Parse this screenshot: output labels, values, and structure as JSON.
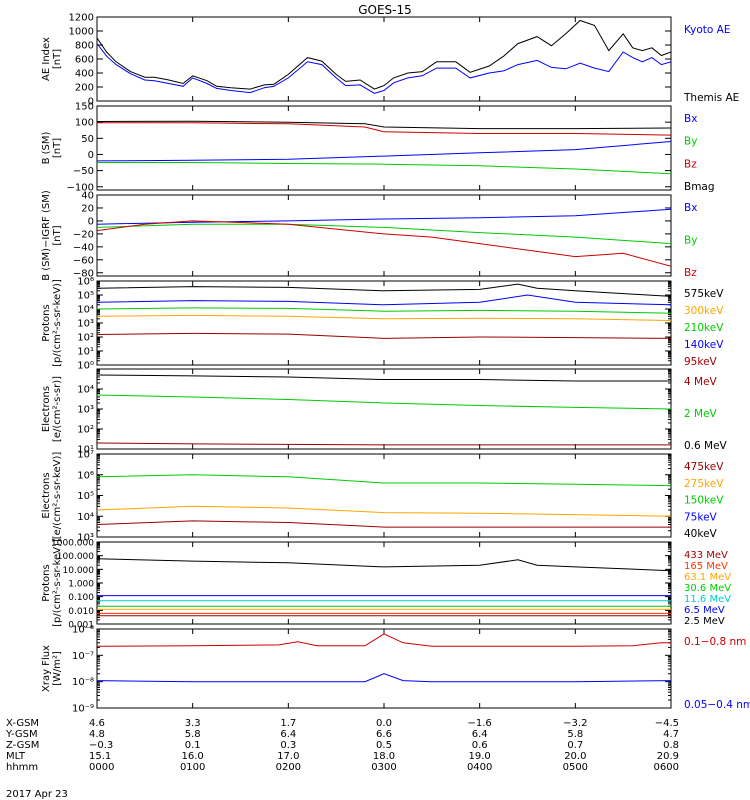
{
  "title": "GOES-15",
  "date_label": "2017 Apr 23",
  "chart_data": [
    {
      "id": "ae",
      "type": "line",
      "ylabel": [
        "AE Index",
        "[nT]"
      ],
      "scale": "linear",
      "ylim": [
        0,
        1200
      ],
      "ticks": [
        0,
        200,
        400,
        600,
        800,
        1000,
        1200
      ],
      "tick_labels": [
        "0",
        "200",
        "400",
        "600",
        "800",
        "1000",
        "1200"
      ],
      "series": [
        {
          "name": "Kyoto AE",
          "color": "#0000ff",
          "x": [
            0,
            0.1,
            0.2,
            0.35,
            0.5,
            0.6,
            0.75,
            0.9,
            1.0,
            1.15,
            1.25,
            1.4,
            1.6,
            1.75,
            1.85,
            2.0,
            2.2,
            2.35,
            2.5,
            2.6,
            2.75,
            2.9,
            3.0,
            3.1,
            3.25,
            3.4,
            3.55,
            3.75,
            3.9,
            4.1,
            4.25,
            4.4,
            4.6,
            4.75,
            4.9,
            5.05,
            5.2,
            5.35,
            5.5,
            5.6,
            5.7,
            5.8,
            5.9,
            6.0
          ],
          "y": [
            820,
            640,
            520,
            390,
            300,
            290,
            250,
            210,
            330,
            250,
            180,
            150,
            120,
            190,
            210,
            330,
            560,
            520,
            330,
            220,
            230,
            110,
            150,
            260,
            330,
            360,
            470,
            470,
            330,
            400,
            430,
            520,
            580,
            480,
            460,
            540,
            470,
            420,
            700,
            620,
            560,
            620,
            520,
            560
          ]
        },
        {
          "name": "Themis AE",
          "color": "#000000",
          "x": [
            0,
            0.1,
            0.2,
            0.35,
            0.5,
            0.6,
            0.75,
            0.9,
            1.0,
            1.15,
            1.25,
            1.4,
            1.6,
            1.75,
            1.85,
            2.0,
            2.2,
            2.35,
            2.5,
            2.6,
            2.75,
            2.9,
            3.0,
            3.1,
            3.25,
            3.4,
            3.55,
            3.75,
            3.9,
            4.1,
            4.25,
            4.4,
            4.6,
            4.75,
            4.9,
            5.05,
            5.2,
            5.35,
            5.5,
            5.6,
            5.7,
            5.8,
            5.9,
            6.0
          ],
          "y": [
            900,
            700,
            560,
            420,
            340,
            340,
            300,
            250,
            360,
            290,
            210,
            190,
            170,
            230,
            240,
            380,
            620,
            570,
            380,
            280,
            300,
            170,
            220,
            330,
            400,
            420,
            560,
            560,
            410,
            500,
            640,
            820,
            920,
            790,
            960,
            1150,
            1080,
            720,
            960,
            760,
            720,
            760,
            650,
            700
          ]
        }
      ]
    },
    {
      "id": "bsm",
      "type": "line",
      "ylabel": [
        "B (SM)",
        "[nT]"
      ],
      "scale": "linear",
      "ylim": [
        -110,
        150
      ],
      "ticks": [
        -100,
        -50,
        0,
        50,
        100,
        150
      ],
      "tick_labels": [
        "−100",
        "−50",
        "0",
        "50",
        "100",
        "150"
      ],
      "series": [
        {
          "name": "Bx",
          "color": "#0000ff",
          "x": [
            0,
            1,
            2,
            3,
            4,
            5,
            6
          ],
          "y": [
            -20,
            -18,
            -15,
            -5,
            5,
            15,
            40
          ]
        },
        {
          "name": "By",
          "color": "#00cc00",
          "x": [
            0,
            1,
            2,
            3,
            4,
            5,
            6
          ],
          "y": [
            -25,
            -25,
            -28,
            -30,
            -35,
            -45,
            -60
          ]
        },
        {
          "name": "Bz",
          "color": "#cc0000",
          "x": [
            0,
            1,
            2,
            2.8,
            3,
            4,
            5,
            6
          ],
          "y": [
            98,
            98,
            95,
            85,
            70,
            65,
            65,
            60
          ]
        },
        {
          "name": "Bmag",
          "color": "#000000",
          "x": [
            0,
            1,
            2,
            2.8,
            3,
            4,
            5,
            6
          ],
          "y": [
            102,
            103,
            100,
            95,
            85,
            80,
            80,
            82
          ]
        }
      ]
    },
    {
      "id": "bigrf",
      "type": "line",
      "ylabel": [
        "B (SM)−IGRF (SM)",
        "[nT]"
      ],
      "scale": "linear",
      "ylim": [
        -85,
        40
      ],
      "ticks": [
        -80,
        -60,
        -40,
        -20,
        0,
        20,
        40
      ],
      "tick_labels": [
        "−80",
        "−60",
        "−40",
        "−20",
        "0",
        "20",
        "40"
      ],
      "series": [
        {
          "name": "Bx",
          "color": "#0000ff",
          "x": [
            0,
            1,
            2,
            3,
            4,
            5,
            6
          ],
          "y": [
            -5,
            -2,
            0,
            3,
            5,
            8,
            18
          ]
        },
        {
          "name": "By",
          "color": "#00cc00",
          "x": [
            0,
            1,
            2,
            3,
            4,
            5,
            6
          ],
          "y": [
            -10,
            -5,
            -5,
            -10,
            -18,
            -25,
            -35
          ]
        },
        {
          "name": "Bz",
          "color": "#cc0000",
          "x": [
            0,
            0.5,
            1,
            2,
            3,
            3.5,
            4,
            4.5,
            5,
            5.5,
            6
          ],
          "y": [
            -15,
            -5,
            0,
            -5,
            -20,
            -25,
            -35,
            -45,
            -55,
            -50,
            -70
          ]
        }
      ]
    },
    {
      "id": "protons",
      "type": "line",
      "ylabel": [
        "Protons",
        "[p/(cm²-s-sr-keV)]"
      ],
      "scale": "log",
      "ylim": [
        1,
        1000000
      ],
      "ticks": [
        1,
        10,
        100,
        1000,
        10000,
        100000,
        1000000
      ],
      "tick_labels": [
        "10⁰",
        "10¹",
        "10²",
        "10³",
        "10⁴",
        "10⁵",
        "10⁶"
      ],
      "series": [
        {
          "name": "575keV",
          "color": "#000000",
          "x": [
            0,
            1,
            2,
            3,
            4,
            4.4,
            4.6,
            5,
            6
          ],
          "y": [
            300000,
            400000,
            350000,
            200000,
            250000,
            600000,
            300000,
            200000,
            80000
          ]
        },
        {
          "name": "300keV",
          "color": "#ffa500",
          "x": [
            0,
            1,
            2,
            3,
            4,
            5,
            6
          ],
          "y": [
            3000,
            3500,
            3000,
            2000,
            2200,
            2000,
            1500
          ]
        },
        {
          "name": "210keV",
          "color": "#00cc00",
          "x": [
            0,
            1,
            2,
            3,
            4,
            5,
            6
          ],
          "y": [
            10000,
            12000,
            11000,
            7000,
            8000,
            7000,
            5000
          ]
        },
        {
          "name": "140keV",
          "color": "#0000ff",
          "x": [
            0,
            1,
            2,
            3,
            4,
            4.5,
            5,
            6
          ],
          "y": [
            30000,
            40000,
            35000,
            20000,
            30000,
            100000,
            30000,
            20000
          ]
        },
        {
          "name": "95keV",
          "color": "#990000",
          "x": [
            0,
            1,
            2,
            3,
            4,
            5,
            6
          ],
          "y": [
            150,
            180,
            160,
            80,
            100,
            90,
            80
          ]
        }
      ]
    },
    {
      "id": "electrons_mev",
      "type": "line",
      "ylabel": [
        "Electrons",
        "[e/(cm²-s-sr)]"
      ],
      "scale": "log",
      "ylim": [
        10,
        100000
      ],
      "ticks": [
        10,
        100,
        1000,
        10000
      ],
      "tick_labels": [
        "10¹",
        "10²",
        "10³",
        "10⁴"
      ],
      "series": [
        {
          "name": "4 MeV",
          "color": "#990000",
          "x": [
            0,
            1,
            2,
            3,
            4,
            5,
            6
          ],
          "y": [
            20,
            18,
            17,
            16,
            16,
            16,
            16
          ]
        },
        {
          "name": "2 MeV",
          "color": "#00cc00",
          "x": [
            0,
            1,
            2,
            3,
            4,
            5,
            6
          ],
          "y": [
            5000,
            4000,
            3000,
            2000,
            1500,
            1200,
            1000
          ]
        },
        {
          "name": "0.6 MeV",
          "color": "#000000",
          "x": [
            0,
            1,
            2,
            3,
            4,
            5,
            6
          ],
          "y": [
            50000,
            45000,
            40000,
            30000,
            30000,
            25000,
            25000
          ]
        }
      ]
    },
    {
      "id": "electrons_kev",
      "type": "line",
      "ylabel": [
        "Electrons",
        "[e/(cm²-s-sr-keV)]"
      ],
      "scale": "log",
      "ylim": [
        1000,
        10000000
      ],
      "ticks": [
        1000,
        10000,
        100000,
        1000000,
        10000000
      ],
      "tick_labels": [
        "10³",
        "10⁴",
        "10⁵",
        "10⁶",
        "10⁷"
      ],
      "series": [
        {
          "name": "475keV",
          "color": "#990000",
          "x": [
            0,
            1,
            2,
            3,
            4,
            5,
            6
          ],
          "y": [
            4000,
            6000,
            5000,
            3000,
            3000,
            3000,
            3000
          ]
        },
        {
          "name": "275keV",
          "color": "#ffa500",
          "x": [
            0,
            1,
            2,
            3,
            4,
            5,
            6
          ],
          "y": [
            20000,
            30000,
            25000,
            15000,
            14000,
            12000,
            10000
          ]
        },
        {
          "name": "150keV",
          "color": "#00cc00",
          "x": [
            0,
            1,
            2,
            3,
            4,
            5,
            6
          ],
          "y": [
            800000,
            1000000,
            800000,
            400000,
            400000,
            350000,
            300000
          ]
        },
        {
          "name": "75keV",
          "color": "#0000ff",
          "x": [
            0,
            6
          ],
          "y": [
            1000,
            1000
          ]
        },
        {
          "name": "40keV",
          "color": "#000000",
          "x": [
            0,
            6
          ],
          "y": [
            1000,
            1000
          ]
        }
      ]
    },
    {
      "id": "protons_mev",
      "type": "line",
      "ylabel": [
        "Protons",
        "[p/(cm²-s-sr-keV)]"
      ],
      "scale": "log",
      "ylim": [
        0.001,
        1000
      ],
      "ticks": [
        0.001,
        0.01,
        0.1,
        1,
        10,
        100,
        1000
      ],
      "tick_labels": [
        "0.001",
        "0.010",
        "0.100",
        "1.000",
        "10.000",
        "100.000",
        "1000.000"
      ],
      "series": [
        {
          "name": "433 MeV",
          "color": "#990000",
          "x": [
            0,
            6
          ],
          "y": [
            0.004,
            0.004
          ]
        },
        {
          "name": "165 MeV",
          "color": "#ff3300",
          "x": [
            0,
            6
          ],
          "y": [
            0.006,
            0.006
          ]
        },
        {
          "name": "63.1 MeV",
          "color": "#ffa500",
          "x": [
            0,
            6
          ],
          "y": [
            0.012,
            0.012
          ]
        },
        {
          "name": "30.6 MeV",
          "color": "#00cc00",
          "x": [
            0,
            6
          ],
          "y": [
            0.02,
            0.02
          ]
        },
        {
          "name": "11.6 MeV",
          "color": "#00cccc",
          "x": [
            0,
            6
          ],
          "y": [
            0.05,
            0.05
          ]
        },
        {
          "name": "6.5 MeV",
          "color": "#0000ff",
          "x": [
            0,
            6
          ],
          "y": [
            0.12,
            0.12
          ]
        },
        {
          "name": "2.5 MeV",
          "color": "#000000",
          "x": [
            0,
            1,
            2,
            3,
            4,
            4.4,
            4.6,
            5,
            6
          ],
          "y": [
            60,
            40,
            30,
            15,
            20,
            50,
            20,
            15,
            8
          ]
        }
      ]
    },
    {
      "id": "xray",
      "type": "line",
      "ylabel": [
        "Xray Flux",
        "[W/m²]"
      ],
      "scale": "log",
      "ylim": [
        1e-09,
        1e-06
      ],
      "ticks": [
        1e-09,
        1e-08,
        1e-07,
        1e-06
      ],
      "tick_labels": [
        "10⁻⁹",
        "10⁻⁸",
        "10⁻⁷",
        "10⁻⁶"
      ],
      "series": [
        {
          "name": "0.1−0.8 nm",
          "color": "#cc0000",
          "x": [
            0,
            1,
            1.9,
            2.1,
            2.3,
            2.8,
            3.0,
            3.2,
            3.5,
            4,
            5,
            5.6,
            5.9,
            6
          ],
          "y": [
            2.2e-07,
            2.3e-07,
            2.5e-07,
            3.3e-07,
            2.3e-07,
            2.3e-07,
            6.5e-07,
            3e-07,
            2.2e-07,
            2.2e-07,
            2.2e-07,
            2.3e-07,
            3e-07,
            3e-07
          ]
        },
        {
          "name": "0.05−0.4 nm",
          "color": "#0000ff",
          "x": [
            0,
            1,
            2,
            2.8,
            3.0,
            3.2,
            3.5,
            4,
            5,
            6
          ],
          "y": [
            1.1e-08,
            1e-08,
            1e-08,
            1e-08,
            2e-08,
            1.1e-08,
            1e-08,
            1e-08,
            1e-08,
            1.1e-08
          ]
        }
      ]
    }
  ],
  "time_axis": {
    "ticks": [
      0,
      1,
      2,
      3,
      4,
      5,
      6
    ],
    "rows": [
      {
        "label": "X-GSM",
        "values": [
          "4.6",
          "3.3",
          "1.7",
          "0.0",
          "−1.6",
          "−3.2",
          "−4.5"
        ]
      },
      {
        "label": "Y-GSM",
        "values": [
          "4.8",
          "5.8",
          "6.4",
          "6.6",
          "6.4",
          "5.8",
          "4.7"
        ]
      },
      {
        "label": "Z-GSM",
        "values": [
          "−0.3",
          "0.1",
          "0.3",
          "0.5",
          "0.6",
          "0.7",
          "0.8"
        ]
      },
      {
        "label": "MLT",
        "values": [
          "15.1",
          "16.0",
          "17.0",
          "18.0",
          "19.0",
          "20.0",
          "20.9"
        ]
      },
      {
        "label": "hhmm",
        "values": [
          "0000",
          "0100",
          "0200",
          "0300",
          "0400",
          "0500",
          "0600"
        ]
      }
    ]
  }
}
